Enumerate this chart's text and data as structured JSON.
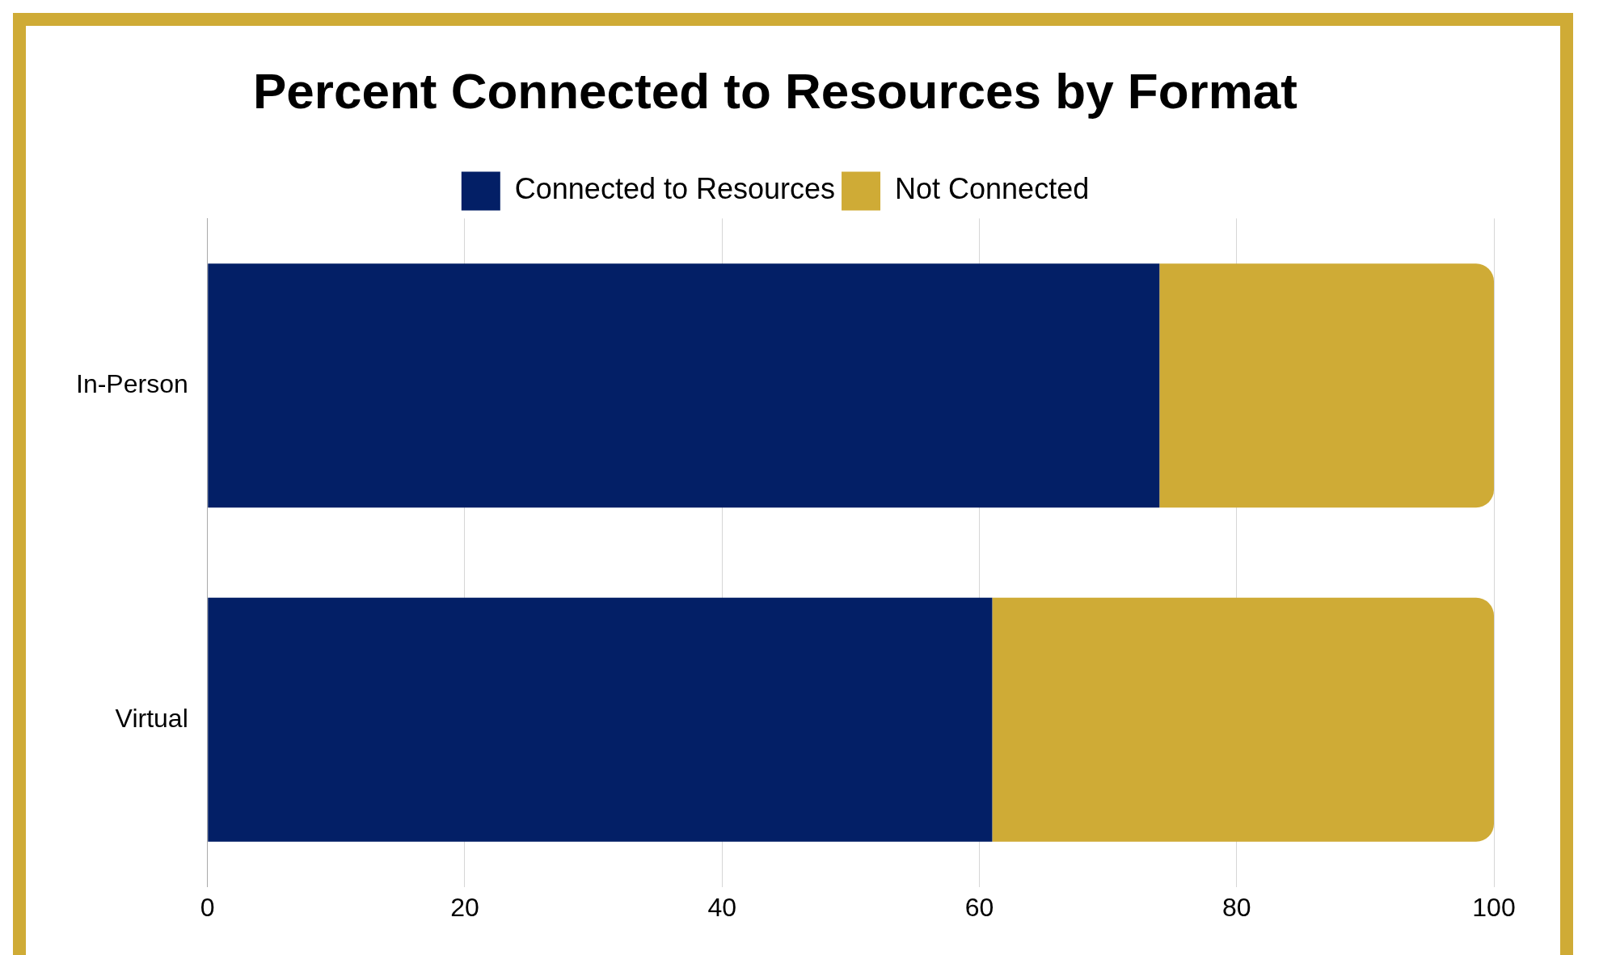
{
  "chart_data": {
    "type": "bar",
    "orientation": "horizontal",
    "stacked": true,
    "title": "Percent Connected to Resources by Format",
    "categories": [
      "In-Person",
      "Virtual"
    ],
    "series": [
      {
        "name": "Connected to Resources",
        "color": "#031f66",
        "values": [
          74,
          61
        ]
      },
      {
        "name": "Not Connected",
        "color": "#cfab36",
        "values": [
          26,
          39
        ]
      }
    ],
    "xlim": [
      0,
      100
    ],
    "xticks": [
      0,
      20,
      40,
      60,
      80,
      100
    ],
    "grid": "x",
    "legend": "top"
  }
}
